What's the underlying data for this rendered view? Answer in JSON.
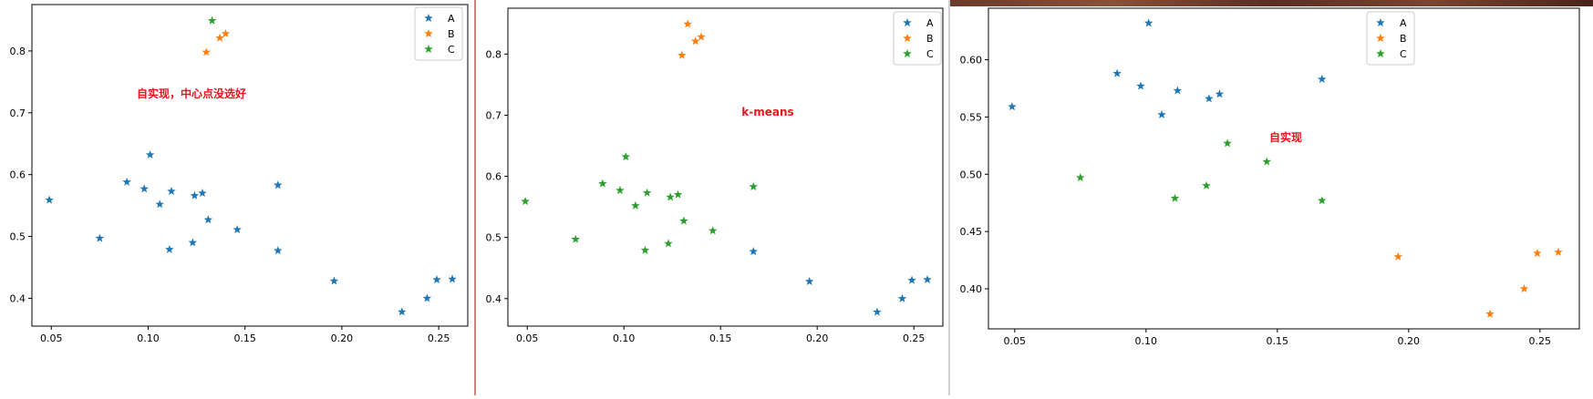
{
  "colors": {
    "A": "#1f77b4",
    "B": "#ff7f0e",
    "C": "#2ca02c",
    "annotation": "#e8141e"
  },
  "chart_data": [
    {
      "type": "scatter",
      "annotation": "自实现，中心点没选好",
      "legend": "top-right",
      "marker": "star",
      "xlim": [
        0.04,
        0.265
      ],
      "ylim": [
        0.355,
        0.875
      ],
      "xticks": [
        0.05,
        0.1,
        0.15,
        0.2,
        0.25
      ],
      "xtick_labels": [
        "0.05",
        "0.10",
        "0.15",
        "0.20",
        "0.25"
      ],
      "yticks": [
        0.4,
        0.5,
        0.6,
        0.7,
        0.8
      ],
      "ytick_labels": [
        "0.4",
        "0.5",
        "0.6",
        "0.7",
        "0.8"
      ],
      "series": [
        {
          "name": "A",
          "points": [
            [
              0.049,
              0.559
            ],
            [
              0.075,
              0.497
            ],
            [
              0.089,
              0.588
            ],
            [
              0.098,
              0.577
            ],
            [
              0.101,
              0.632
            ],
            [
              0.106,
              0.552
            ],
            [
              0.111,
              0.479
            ],
            [
              0.112,
              0.573
            ],
            [
              0.123,
              0.49
            ],
            [
              0.124,
              0.566
            ],
            [
              0.128,
              0.57
            ],
            [
              0.131,
              0.527
            ],
            [
              0.146,
              0.511
            ],
            [
              0.167,
              0.583
            ],
            [
              0.167,
              0.477
            ],
            [
              0.196,
              0.428
            ],
            [
              0.231,
              0.378
            ],
            [
              0.244,
              0.4
            ],
            [
              0.249,
              0.43
            ],
            [
              0.257,
              0.431
            ]
          ]
        },
        {
          "name": "B",
          "points": [
            [
              0.13,
              0.798
            ],
            [
              0.137,
              0.821
            ],
            [
              0.14,
              0.828
            ]
          ]
        },
        {
          "name": "C",
          "points": [
            [
              0.133,
              0.849
            ]
          ]
        }
      ]
    },
    {
      "type": "scatter",
      "annotation": "k-means",
      "legend": "top-right",
      "marker": "star",
      "xlim": [
        0.04,
        0.265
      ],
      "ylim": [
        0.355,
        0.875
      ],
      "xticks": [
        0.05,
        0.1,
        0.15,
        0.2,
        0.25
      ],
      "xtick_labels": [
        "0.05",
        "0.10",
        "0.15",
        "0.20",
        "0.25"
      ],
      "yticks": [
        0.4,
        0.5,
        0.6,
        0.7,
        0.8
      ],
      "ytick_labels": [
        "0.4",
        "0.5",
        "0.6",
        "0.7",
        "0.8"
      ],
      "series": [
        {
          "name": "A",
          "points": [
            [
              0.167,
              0.477
            ],
            [
              0.196,
              0.428
            ],
            [
              0.231,
              0.378
            ],
            [
              0.244,
              0.4
            ],
            [
              0.249,
              0.43
            ],
            [
              0.257,
              0.431
            ]
          ]
        },
        {
          "name": "B",
          "points": [
            [
              0.13,
              0.798
            ],
            [
              0.137,
              0.821
            ],
            [
              0.14,
              0.828
            ],
            [
              0.133,
              0.849
            ]
          ]
        },
        {
          "name": "C",
          "points": [
            [
              0.049,
              0.559
            ],
            [
              0.075,
              0.497
            ],
            [
              0.089,
              0.588
            ],
            [
              0.098,
              0.577
            ],
            [
              0.101,
              0.632
            ],
            [
              0.106,
              0.552
            ],
            [
              0.111,
              0.479
            ],
            [
              0.112,
              0.573
            ],
            [
              0.123,
              0.49
            ],
            [
              0.124,
              0.566
            ],
            [
              0.128,
              0.57
            ],
            [
              0.131,
              0.527
            ],
            [
              0.146,
              0.511
            ],
            [
              0.167,
              0.583
            ]
          ]
        }
      ]
    },
    {
      "type": "scatter",
      "annotation": "自实现",
      "legend": "top-right",
      "marker": "star",
      "xlim": [
        0.04,
        0.265
      ],
      "ylim": [
        0.365,
        0.645
      ],
      "xticks": [
        0.05,
        0.1,
        0.15,
        0.2,
        0.25
      ],
      "xtick_labels": [
        "0.05",
        "0.10",
        "0.15",
        "0.20",
        "0.25"
      ],
      "yticks": [
        0.4,
        0.45,
        0.5,
        0.55,
        0.6
      ],
      "ytick_labels": [
        "0.40",
        "0.45",
        "0.50",
        "0.55",
        "0.60"
      ],
      "series": [
        {
          "name": "A",
          "points": [
            [
              0.049,
              0.559
            ],
            [
              0.089,
              0.588
            ],
            [
              0.098,
              0.577
            ],
            [
              0.101,
              0.632
            ],
            [
              0.106,
              0.552
            ],
            [
              0.112,
              0.573
            ],
            [
              0.124,
              0.566
            ],
            [
              0.128,
              0.57
            ],
            [
              0.167,
              0.583
            ]
          ]
        },
        {
          "name": "B",
          "points": [
            [
              0.196,
              0.428
            ],
            [
              0.231,
              0.378
            ],
            [
              0.244,
              0.4
            ],
            [
              0.249,
              0.431
            ],
            [
              0.257,
              0.432
            ]
          ]
        },
        {
          "name": "C",
          "points": [
            [
              0.075,
              0.497
            ],
            [
              0.111,
              0.479
            ],
            [
              0.123,
              0.49
            ],
            [
              0.131,
              0.527
            ],
            [
              0.146,
              0.511
            ],
            [
              0.167,
              0.477
            ]
          ]
        }
      ]
    }
  ]
}
